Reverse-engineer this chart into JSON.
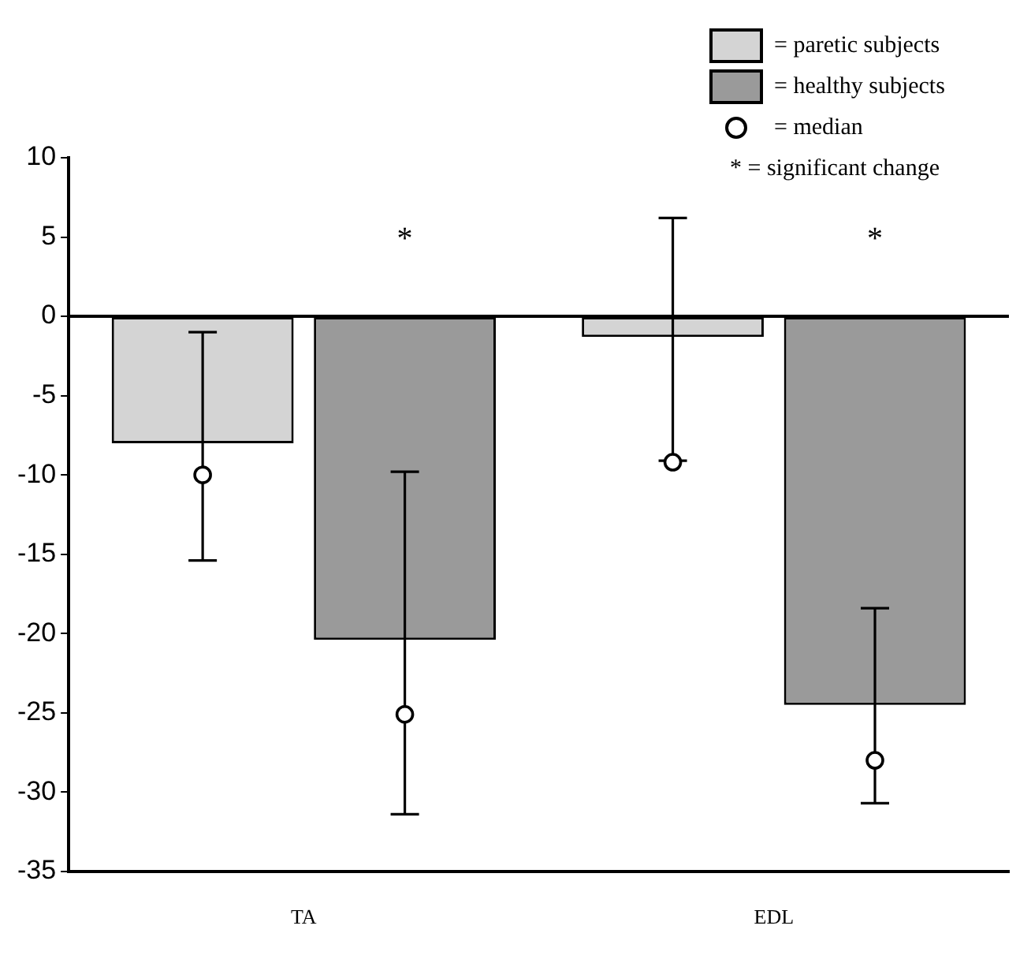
{
  "chart_data": {
    "type": "bar",
    "categories": [
      "TA",
      "EDL"
    ],
    "series": [
      {
        "name": "= paretic subjects",
        "color": "#d4d4d4",
        "values": [
          -8.0,
          -1.3
        ],
        "errors": [
          [
            -15.4,
            -1.0
          ],
          [
            -9.1,
            6.2
          ]
        ]
      },
      {
        "name": "= healthy subjects",
        "color": "#9a9a9a",
        "values": [
          -20.4,
          -24.5
        ],
        "errors": [
          [
            -31.4,
            -9.8
          ],
          [
            -30.7,
            -18.4
          ]
        ]
      },
      {
        "name": "= median",
        "type": "scatter",
        "color": "#000000",
        "marker": "circle",
        "x": [
          "TA",
          "TA",
          "EDL",
          "EDL"
        ],
        "values": [
          -10.0,
          -25.1,
          -9.2,
          -28.0
        ]
      }
    ],
    "ylim": [
      -35,
      10
    ],
    "yticks": [
      -35,
      -30,
      -25,
      -20,
      -15,
      -10,
      -5,
      0,
      5,
      10
    ],
    "ref_lines": [
      {
        "axis": "y",
        "value": 0
      }
    ],
    "annotations": [
      "*",
      "*",
      "* = significant change"
    ],
    "grid": false,
    "legend": "top right"
  }
}
